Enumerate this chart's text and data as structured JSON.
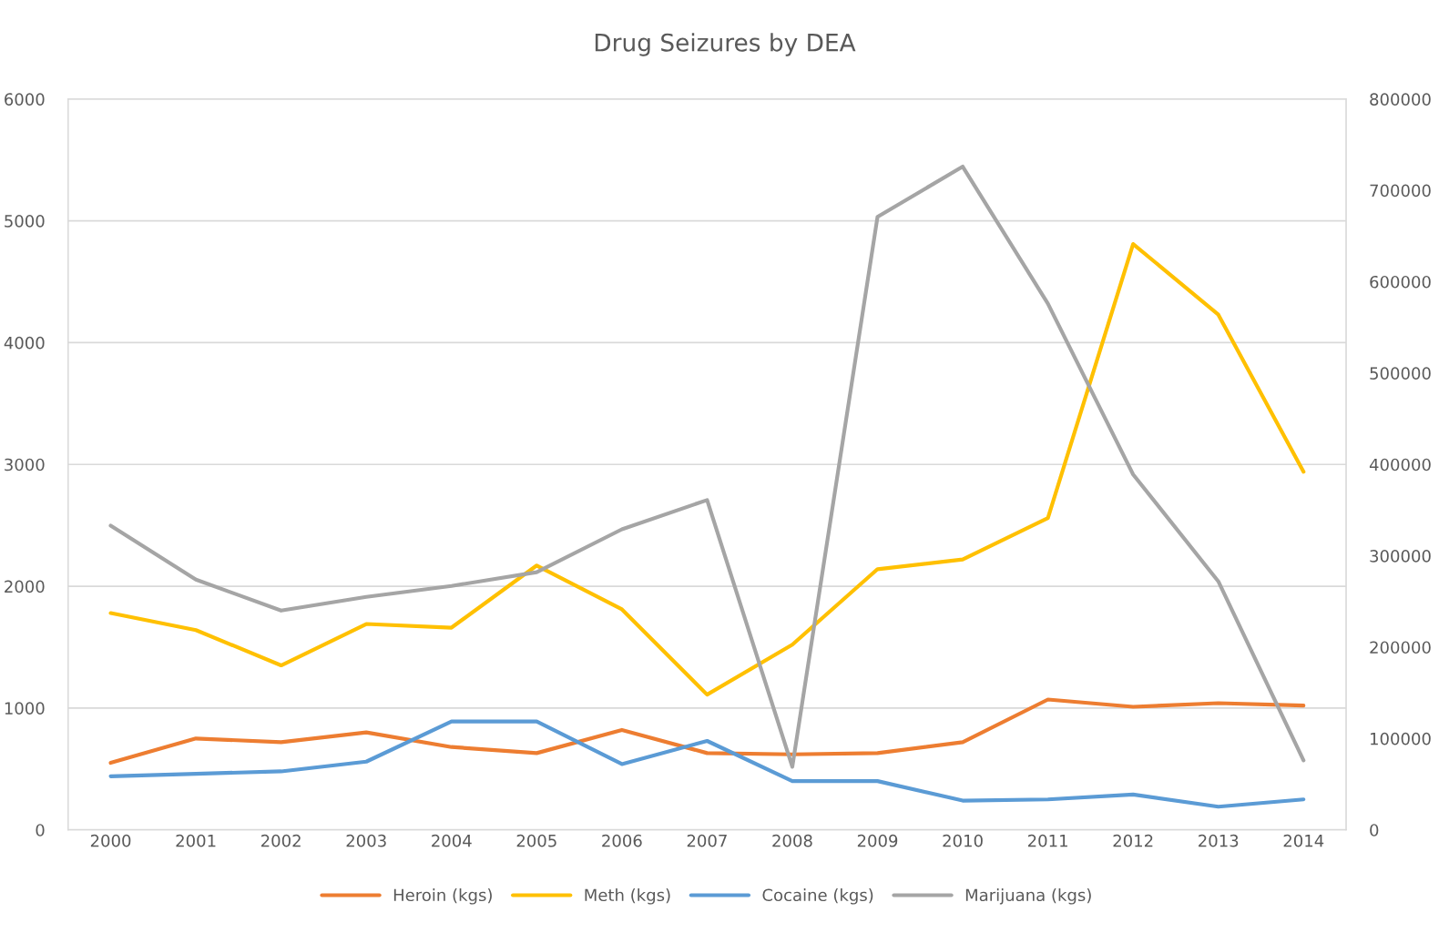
{
  "chart_data": {
    "type": "line",
    "title": "Drug Seizures by DEA",
    "categories": [
      "2000",
      "2001",
      "2002",
      "2003",
      "2004",
      "2005",
      "2006",
      "2007",
      "2008",
      "2009",
      "2010",
      "2011",
      "2012",
      "2013",
      "2014"
    ],
    "series": [
      {
        "name": "Heroin (kgs)",
        "color": "#ed7d31",
        "values": [
          550,
          750,
          720,
          800,
          680,
          630,
          820,
          630,
          620,
          630,
          720,
          1070,
          1010,
          1040,
          1020
        ]
      },
      {
        "name": "Meth (kgs)",
        "color": "#ffc000",
        "values": [
          1780,
          1640,
          1350,
          1690,
          1660,
          2170,
          1810,
          1110,
          1520,
          2140,
          2220,
          2560,
          4810,
          4230,
          2940
        ]
      },
      {
        "name": "Cocaine (kgs)",
        "color": "#5b9bd5",
        "values": [
          440,
          460,
          480,
          560,
          890,
          890,
          540,
          730,
          400,
          400,
          240,
          250,
          290,
          190,
          250
        ]
      },
      {
        "name": "Marijuana (kgs)",
        "color": "#a5a5a5",
        "axis": "y2",
        "values": [
          333000,
          274000,
          240000,
          255000,
          267000,
          282000,
          329000,
          361000,
          69000,
          671000,
          726000,
          576000,
          389000,
          272000,
          76000
        ]
      }
    ],
    "ylim": [
      0,
      6000
    ],
    "yticks": [
      0,
      1000,
      2000,
      3000,
      4000,
      5000,
      6000
    ],
    "y2lim": [
      0,
      800000
    ],
    "y2ticks": [
      0,
      100000,
      200000,
      300000,
      400000,
      500000,
      600000,
      700000,
      800000
    ],
    "grid": "y",
    "legend": "bottom",
    "marker": "none",
    "line_style": "solid"
  }
}
